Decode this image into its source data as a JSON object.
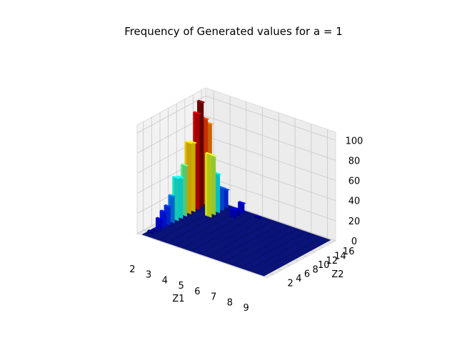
{
  "chart_data": {
    "type": "bar3d",
    "title": "Frequency of Generated values for a = 1",
    "xlabel": "Z1",
    "ylabel": "Z2",
    "zlabel": "",
    "x_ticks": [
      2,
      3,
      4,
      5,
      6,
      7,
      8,
      9
    ],
    "y_ticks": [
      2,
      4,
      6,
      8,
      10,
      12,
      14,
      16
    ],
    "z_ticks": [
      0,
      20,
      40,
      60,
      80,
      100
    ],
    "xlim": [
      1.5,
      9.5
    ],
    "ylim": [
      0.5,
      17
    ],
    "zlim": [
      0,
      108
    ],
    "colormap": "jet",
    "bars": [
      {
        "z1": 2,
        "z2": 2,
        "count": 2
      },
      {
        "z1": 2,
        "z2": 3,
        "count": 1
      },
      {
        "z1": 2,
        "z2": 4,
        "count": 10
      },
      {
        "z1": 2,
        "z2": 5,
        "count": 15
      },
      {
        "z1": 2,
        "z2": 6,
        "count": 18
      },
      {
        "z1": 2,
        "z2": 7,
        "count": 26
      },
      {
        "z1": 2,
        "z2": 8,
        "count": 42
      },
      {
        "z1": 2,
        "z2": 9,
        "count": 40
      },
      {
        "z1": 2,
        "z2": 10,
        "count": 50
      },
      {
        "z1": 2,
        "z2": 11,
        "count": 70
      },
      {
        "z1": 2,
        "z2": 12,
        "count": 68
      },
      {
        "z1": 2,
        "z2": 13,
        "count": 95
      },
      {
        "z1": 2,
        "z2": 14,
        "count": 104
      },
      {
        "z1": 2,
        "z2": 15,
        "count": 85
      },
      {
        "z1": 2,
        "z2": 16,
        "count": 78
      },
      {
        "z1": 3,
        "z2": 12,
        "count": 62
      },
      {
        "z1": 3,
        "z2": 13,
        "count": 58
      },
      {
        "z1": 3,
        "z2": 14,
        "count": 38
      },
      {
        "z1": 3,
        "z2": 15,
        "count": 22
      },
      {
        "z1": 3,
        "z2": 16,
        "count": 18
      },
      {
        "z1": 4,
        "z2": 14,
        "count": 8
      },
      {
        "z1": 4,
        "z2": 15,
        "count": 6
      },
      {
        "z1": 4,
        "z2": 16,
        "count": 10
      },
      {
        "z1": 5,
        "z2": 16,
        "count": 2
      }
    ]
  }
}
